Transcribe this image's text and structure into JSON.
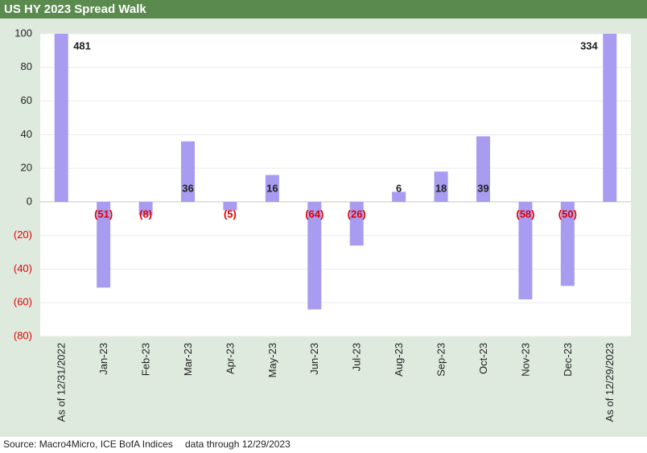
{
  "chart_data": {
    "type": "bar",
    "title": "US HY 2023 Spread Walk",
    "categories": [
      "As of 12/31/2022",
      "Jan-23",
      "Feb-23",
      "Mar-23",
      "Apr-23",
      "May-23",
      "Jun-23",
      "Jul-23",
      "Aug-23",
      "Sep-23",
      "Oct-23",
      "Nov-23",
      "Dec-23",
      "As of 12/29/2023"
    ],
    "values": [
      481,
      -51,
      -8,
      36,
      -5,
      16,
      -64,
      -26,
      6,
      18,
      39,
      -58,
      -50,
      334
    ],
    "value_labels": [
      "481",
      "(51)",
      "(8)",
      "36",
      "(5)",
      "16",
      "(64)",
      "(26)",
      "6",
      "18",
      "39",
      "(58)",
      "(50)",
      "334"
    ],
    "color": "#a89cf0",
    "ylim": [
      -80,
      100
    ],
    "yticks": [
      100,
      80,
      60,
      40,
      20,
      0,
      {
        "value": -20,
        "label": "(20)"
      },
      {
        "value": -40,
        "label": "(40)"
      },
      {
        "value": -60,
        "label": "(60)"
      },
      {
        "value": -80,
        "label": "(80)"
      }
    ],
    "grid": true,
    "source": "Source: Macro4Micro, ICE BofA Indices",
    "note": "data through 12/29/2023"
  }
}
